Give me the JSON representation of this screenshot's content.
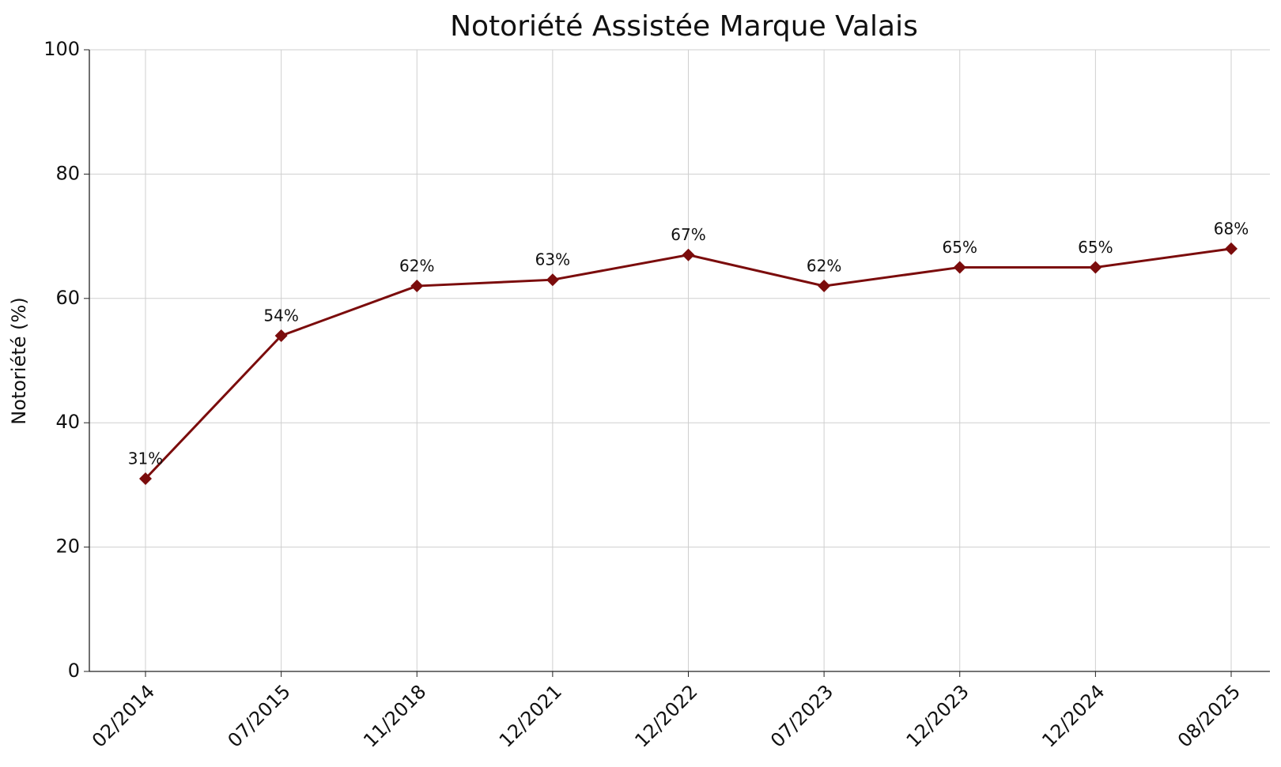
{
  "chart_data": {
    "type": "line",
    "title": "Notoriété Assistée Marque Valais",
    "y_label": "Notoriété (%)",
    "categories": [
      "02/2014",
      "07/2015",
      "11/2018",
      "12/2021",
      "12/2022",
      "07/2023",
      "12/2023",
      "12/2024",
      "08/2025"
    ],
    "values": [
      31,
      54,
      62,
      63,
      67,
      62,
      65,
      65,
      68
    ],
    "value_labels": [
      "31%",
      "54%",
      "62%",
      "63%",
      "67%",
      "62%",
      "65%",
      "65%",
      "68%"
    ],
    "color": "#7b0c0c",
    "ylim": [
      0,
      100
    ],
    "yticks": [
      0,
      20,
      40,
      60,
      80,
      100
    ],
    "grid": true
  }
}
